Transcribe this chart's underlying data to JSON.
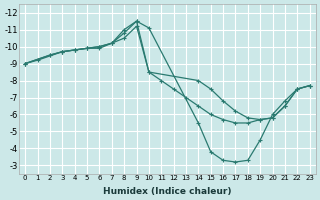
{
  "bg_color": "#cce8e8",
  "grid_color": "#ffffff",
  "line_color": "#2a7a70",
  "xlabel": "Humidex (Indice chaleur)",
  "xlim": [
    -0.5,
    23.5
  ],
  "ylim": [
    -12.5,
    -2.5
  ],
  "yticks": [
    -3,
    -4,
    -5,
    -6,
    -7,
    -8,
    -9,
    -10,
    -11,
    -12
  ],
  "xticks": [
    0,
    1,
    2,
    3,
    4,
    5,
    6,
    7,
    8,
    9,
    10,
    11,
    12,
    13,
    14,
    15,
    16,
    17,
    18,
    19,
    20,
    21,
    22,
    23
  ],
  "line1_x": [
    0,
    1,
    3,
    4,
    5,
    6,
    7,
    8,
    9,
    10,
    14,
    15,
    16,
    17,
    18,
    19,
    20,
    21,
    22,
    23
  ],
  "line1_y": [
    -9.0,
    -9.2,
    -9.7,
    -9.8,
    -9.9,
    -9.9,
    -10.2,
    -10.8,
    -11.5,
    -8.5,
    -8.0,
    -7.5,
    -6.8,
    -6.2,
    -5.8,
    -5.7,
    -5.8,
    -6.5,
    -7.5,
    -7.7
  ],
  "line2_x": [
    0,
    2,
    3,
    4,
    5,
    6,
    7,
    8,
    9,
    10,
    14,
    15,
    16,
    17,
    18,
    19,
    20,
    21,
    22,
    23
  ],
  "line2_y": [
    -9.0,
    -9.5,
    -9.7,
    -9.8,
    -9.9,
    -10.0,
    -10.2,
    -11.0,
    -11.5,
    -11.1,
    -5.5,
    -3.8,
    -3.3,
    -3.2,
    -3.3,
    -4.5,
    -6.0,
    -6.8,
    -7.5,
    -7.7
  ],
  "line3_x": [
    0,
    2,
    3,
    4,
    5,
    6,
    7,
    8,
    9,
    10,
    11,
    12,
    13,
    14,
    15,
    16,
    17,
    18,
    19,
    20,
    21,
    22,
    23
  ],
  "line3_y": [
    -9.0,
    -9.5,
    -9.7,
    -9.8,
    -9.9,
    -10.0,
    -10.2,
    -10.5,
    -11.2,
    -8.5,
    -8.0,
    -7.5,
    -7.0,
    -6.5,
    -6.0,
    -5.7,
    -5.5,
    -5.5,
    -5.7,
    -5.8,
    -6.5,
    -7.5,
    -7.7
  ]
}
